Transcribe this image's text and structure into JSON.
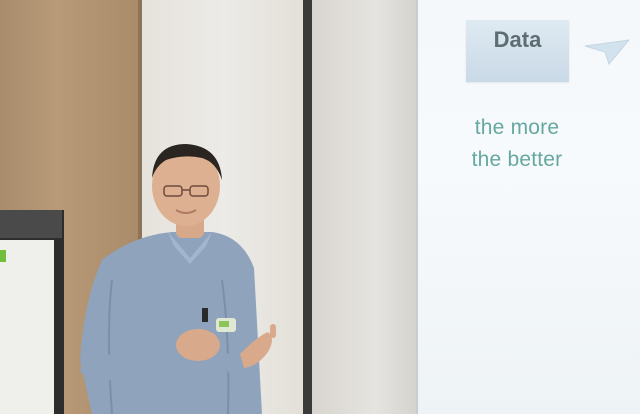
{
  "slide": {
    "title": "Data",
    "line1": "the more",
    "line2": "the better"
  },
  "colors": {
    "slide_text": "#66a8a0",
    "title_text": "#5d6d72",
    "shirt": "#8fa3bd"
  }
}
